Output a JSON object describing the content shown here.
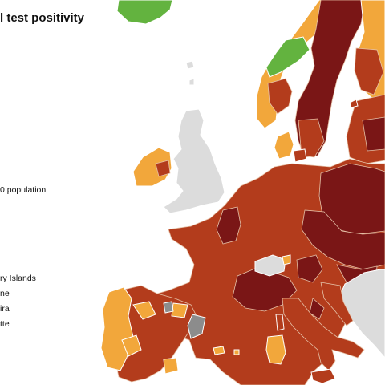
{
  "title_fragment": "l test positivity",
  "legend": {
    "population_fragment": "0 population",
    "regions": [
      "ry Islands",
      "ne",
      "ira",
      "tte"
    ]
  },
  "colors": {
    "sea": "#ffffff",
    "dark_red": "#7a1616",
    "red": "#b33c1c",
    "orange": "#f2a73b",
    "green": "#63b33f",
    "grey": "#8c8c8c",
    "no_data": "#dcdcdc",
    "border": "#e6c2a8"
  }
}
